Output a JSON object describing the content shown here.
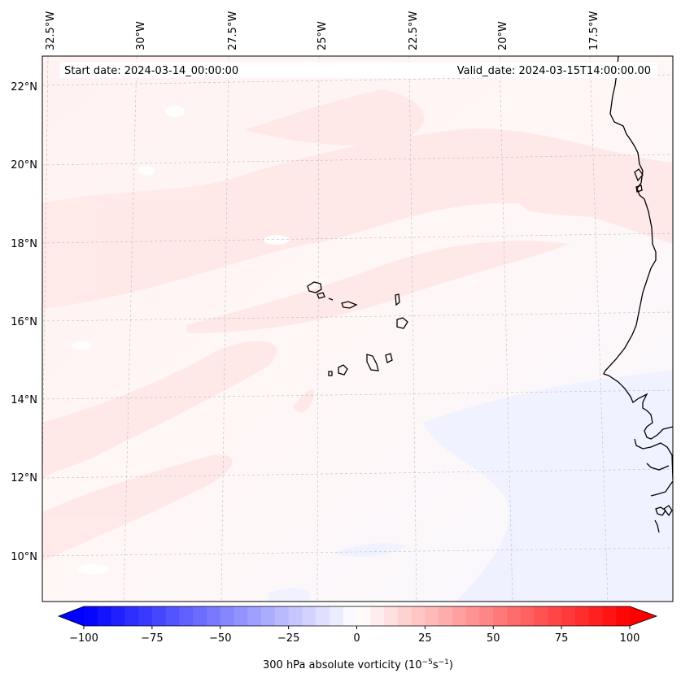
{
  "map": {
    "region": "Eastern North Atlantic / Cape Verde / West Africa",
    "longitude_labels": [
      "32.5°W",
      "30°W",
      "27.5°W",
      "25°W",
      "22.5°W",
      "20°W",
      "17.5°W"
    ],
    "latitude_labels": [
      "22°N",
      "20°N",
      "18°N",
      "16°N",
      "14°N",
      "12°N",
      "10°N"
    ],
    "gridlines": true,
    "coastlines": true
  },
  "info": {
    "start_date": "Start date: 2024-03-14_00:00:00",
    "valid_date": "Valid_date: 2024-03-15T14:00:00.00"
  },
  "colorbar": {
    "ticks": [
      "−100",
      "−75",
      "−50",
      "−25",
      "0",
      "25",
      "50",
      "75",
      "100"
    ],
    "range": [
      -100,
      100
    ],
    "colormap": "bwr",
    "extend": "both",
    "title_prefix": "300 hPa absolute vorticity (10",
    "title_exp1": "−5",
    "title_mid": "s",
    "title_exp2": "−1",
    "title_suffix": ")"
  },
  "colors": {
    "min": "#0000ff",
    "mid": "#ffffff",
    "max": "#ff0000",
    "coastline": "#000000",
    "gridline": "#bbbbbb"
  }
}
